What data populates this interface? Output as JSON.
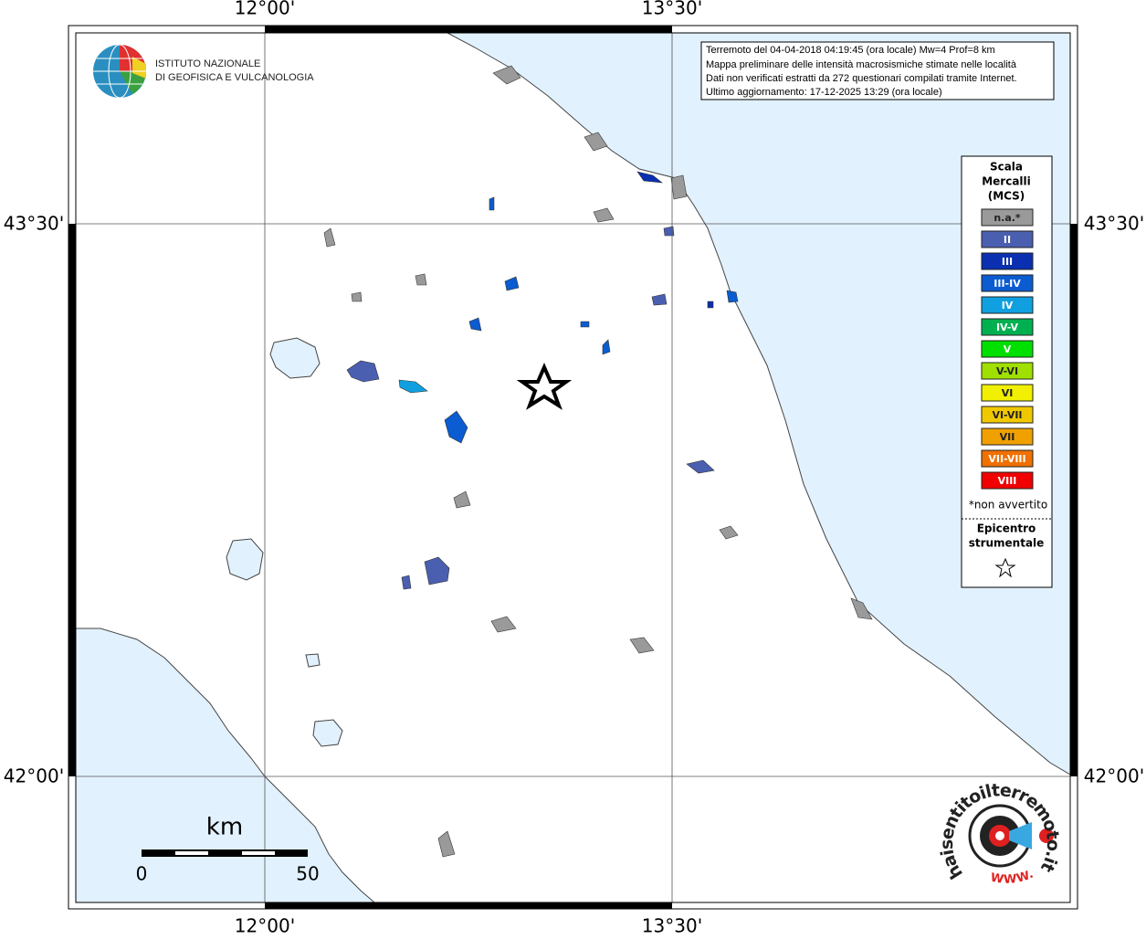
{
  "axes": {
    "top": [
      "12°00'",
      "13°30'"
    ],
    "bottom": [
      "12°00'",
      "13°30'"
    ],
    "left": [
      "43°30'",
      "42°00'"
    ],
    "right": [
      "43°30'",
      "42°00'"
    ]
  },
  "logo": {
    "lines": [
      "ISTITUTO NAZIONALE",
      "DI GEOFISICA E VULCANOLOGIA"
    ]
  },
  "info": {
    "lines": [
      "Terremoto del 04-04-2018 04:19:45 (ora locale) Mw=4 Prof=8 km",
      "Mappa preliminare delle intensità macrosismiche stimate nelle località",
      "Dati non verificati estratti da 272 questionari compilati tramite Internet.",
      "Ultimo aggiornamento: 17-12-2025 13:29 (ora locale)"
    ]
  },
  "legend": {
    "title": [
      "Scala",
      "Mercalli",
      "(MCS)"
    ],
    "items": [
      {
        "label": "n.a.*",
        "color": "#9a9a9a"
      },
      {
        "label": "II",
        "color": "#4a5fb0"
      },
      {
        "label": "III",
        "color": "#0a2fb0"
      },
      {
        "label": "III-IV",
        "color": "#0a5cd0"
      },
      {
        "label": "IV",
        "color": "#10a0e0"
      },
      {
        "label": "IV-V",
        "color": "#00b050"
      },
      {
        "label": "V",
        "color": "#00e000"
      },
      {
        "label": "V-VI",
        "color": "#a0e000"
      },
      {
        "label": "VI",
        "color": "#f0f000"
      },
      {
        "label": "VI-VII",
        "color": "#f0c800"
      },
      {
        "label": "VII",
        "color": "#f0a000"
      },
      {
        "label": "VII-VIII",
        "color": "#f07000"
      },
      {
        "label": "VIII",
        "color": "#f00000"
      }
    ],
    "note": "*non avvertito",
    "epicenter": [
      "Epicentro",
      "strumentale"
    ]
  },
  "scale_bar": {
    "unit": "km",
    "start": 0,
    "end": 50
  },
  "badge": {
    "url": "haisentitoilterremoto.it",
    "prefix": "WWW."
  }
}
